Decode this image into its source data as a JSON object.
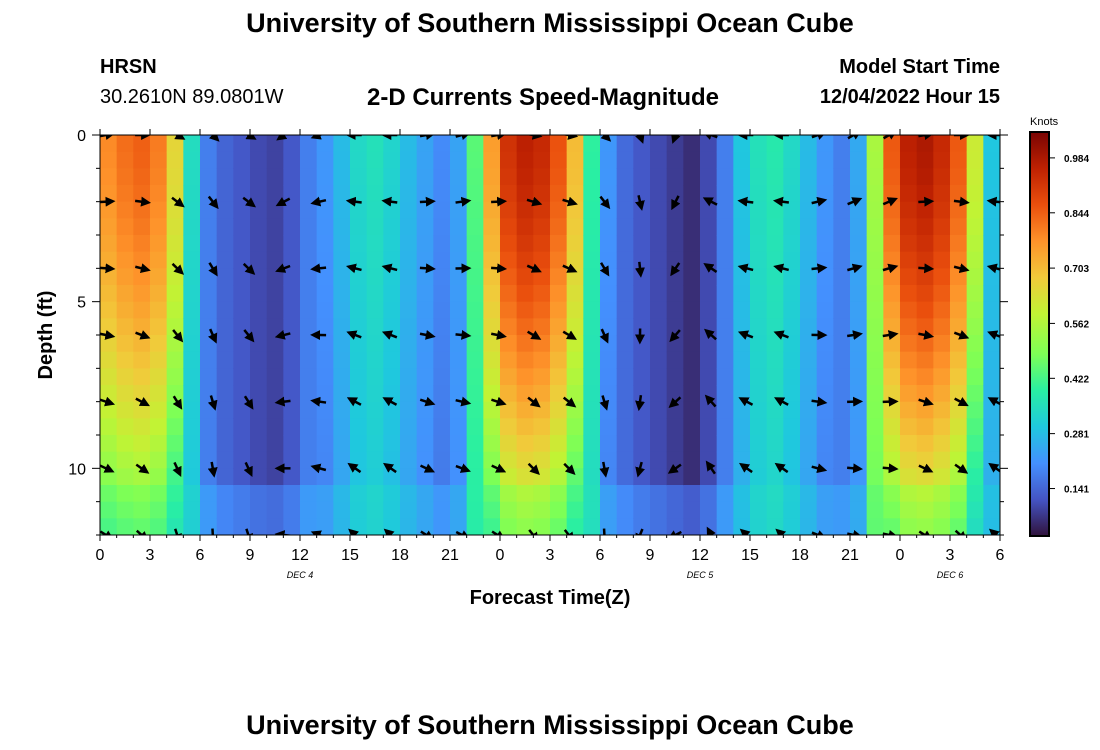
{
  "header": {
    "title": "University of Southern Mississippi Ocean Cube",
    "station": "HRSN",
    "coords": "30.2610N  89.0801W",
    "subtitle": "2-D Currents Speed-Magnitude",
    "model_start_label": "Model Start Time",
    "model_start_value": "12/04/2022 Hour 15",
    "footer_title": "University of Southern Mississippi Ocean Cube"
  },
  "colors": {
    "scale": [
      "#30123b",
      "#4454c4",
      "#4490fe",
      "#1fc8de",
      "#29efa2",
      "#7dff56",
      "#c1f334",
      "#f1ca3a",
      "#fe922a",
      "#ea4f0d",
      "#be2102",
      "#7a0403"
    ]
  },
  "chart_data": {
    "type": "heatmap",
    "title": "2-D Currents Speed-Magnitude",
    "xlabel": "Forecast Time(Z)",
    "ylabel": "Depth (ft)",
    "x_ticks": [
      "0",
      "3",
      "6",
      "9",
      "12",
      "15",
      "18",
      "21",
      "0",
      "3",
      "6",
      "9",
      "12",
      "15",
      "18",
      "21",
      "0",
      "3",
      "6"
    ],
    "y_ticks": [
      "0",
      "5",
      "10"
    ],
    "ylim": [
      0,
      12
    ],
    "day_labels": [
      "DEC 4",
      "DEC 5",
      "DEC 6"
    ],
    "colorbar": {
      "label": "Knots",
      "ticks": [
        "0.984",
        "0.844",
        "0.703",
        "0.562",
        "0.422",
        "0.281",
        "0.141"
      ],
      "range": [
        0.02,
        1.05
      ]
    },
    "columns_hours": 54,
    "depth_levels_ft": [
      0,
      1,
      2,
      3,
      4,
      5,
      6,
      7,
      8,
      9,
      10,
      11,
      12
    ],
    "speed_profile_knots_by_hour": [
      0.78,
      0.82,
      0.84,
      0.8,
      0.65,
      0.35,
      0.18,
      0.14,
      0.12,
      0.1,
      0.09,
      0.12,
      0.18,
      0.22,
      0.28,
      0.34,
      0.36,
      0.33,
      0.28,
      0.24,
      0.2,
      0.24,
      0.45,
      0.75,
      0.92,
      0.96,
      0.94,
      0.86,
      0.7,
      0.4,
      0.22,
      0.15,
      0.12,
      0.1,
      0.08,
      0.06,
      0.1,
      0.18,
      0.3,
      0.36,
      0.38,
      0.34,
      0.28,
      0.22,
      0.18,
      0.25,
      0.55,
      0.85,
      0.96,
      0.98,
      0.94,
      0.85,
      0.6,
      0.3
    ],
    "vector_rows_depth_ft": [
      0,
      2,
      4,
      6,
      8,
      10,
      12
    ],
    "vector_directions_deg_by_column": [
      80,
      90,
      120,
      135,
      120,
      235,
      250,
      270,
      270,
      80,
      75,
      80,
      100,
      100,
      135,
      160,
      200,
      290,
      270,
      270,
      70,
      60,
      60,
      80,
      90,
      270
    ]
  }
}
